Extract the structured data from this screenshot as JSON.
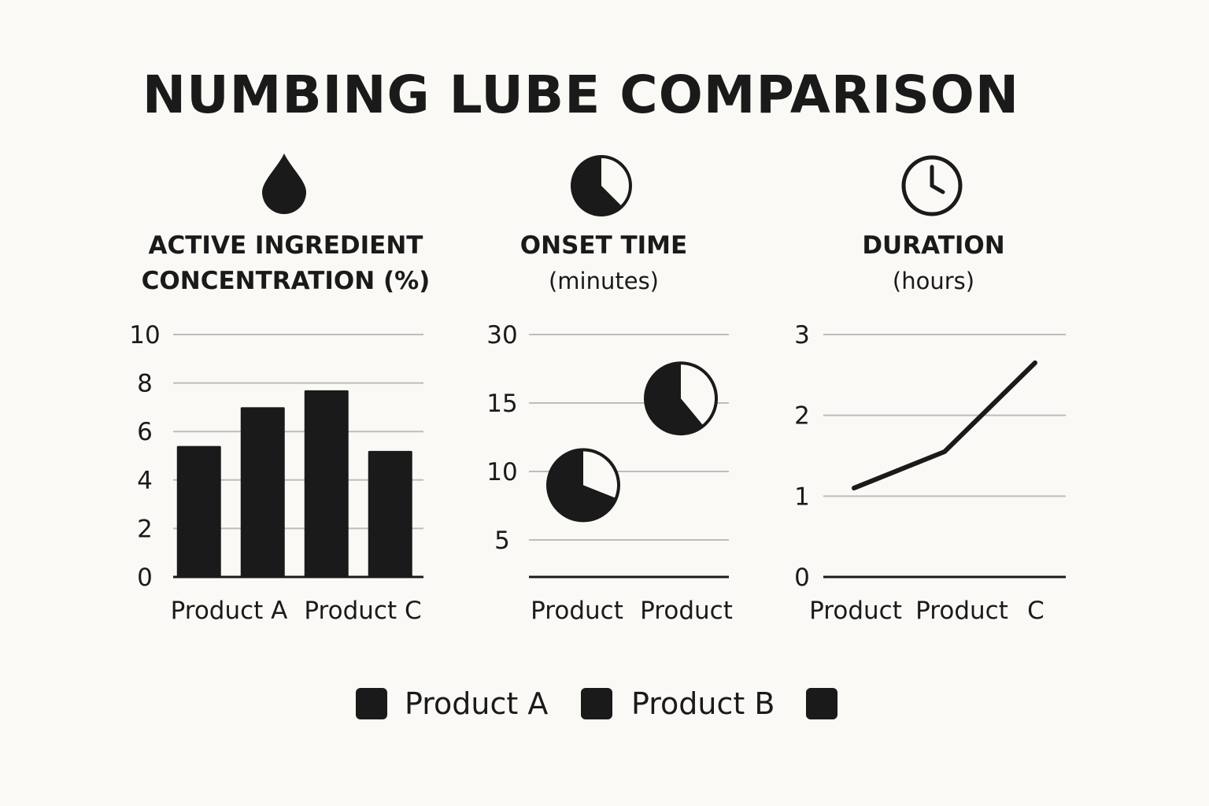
{
  "title": "NUMBING LUBE COMPARISON",
  "icons": [
    "drop-icon",
    "pie-timer-icon",
    "clock-icon"
  ],
  "colors": {
    "ink": "#1a1a1a",
    "background": "#faf9f5",
    "grid": "#bdbdbd"
  },
  "panels": [
    {
      "title_line1": "ACTIVE INGREDIENT",
      "title_line2": "CONCENTRATION (%)"
    },
    {
      "title_line1": "ONSET TIME",
      "title_line2": "(minutes)"
    },
    {
      "title_line1": "DURATION",
      "title_line2": "(hours)"
    }
  ],
  "legend": [
    {
      "label": "Product A"
    },
    {
      "label": "Product B"
    },
    {
      "label": ""
    }
  ],
  "chart_data": [
    {
      "type": "bar",
      "title": "ACTIVE INGREDIENT CONCENTRATION (%)",
      "categories": [
        "Product A",
        "",
        "Product C",
        ""
      ],
      "x_tick_labels": [
        "Product A",
        "Product C"
      ],
      "values": [
        5.4,
        7.0,
        7.7,
        5.2
      ],
      "y_ticks": [
        "0",
        "2",
        "4",
        "6",
        "8",
        "10"
      ],
      "ylim": [
        0,
        10
      ],
      "grid": true
    },
    {
      "type": "scatter",
      "title": "ONSET TIME (minutes)",
      "marker": "pie",
      "x_tick_labels": [
        "Product",
        "Product"
      ],
      "y_ticks": [
        "5",
        "10",
        "15",
        "30"
      ],
      "points": [
        {
          "x": 1,
          "y": 9,
          "pie_fraction": 0.31
        },
        {
          "x": 2,
          "y": 16,
          "pie_fraction": 0.39
        }
      ],
      "grid": true
    },
    {
      "type": "line",
      "title": "DURATION (hours)",
      "x_tick_labels": [
        "Product",
        "Product",
        "C"
      ],
      "x": [
        1,
        2,
        3
      ],
      "values": [
        1.1,
        1.55,
        2.65
      ],
      "y_ticks": [
        "0",
        "1",
        "2",
        "3"
      ],
      "ylim": [
        0,
        3
      ],
      "grid": true
    }
  ]
}
